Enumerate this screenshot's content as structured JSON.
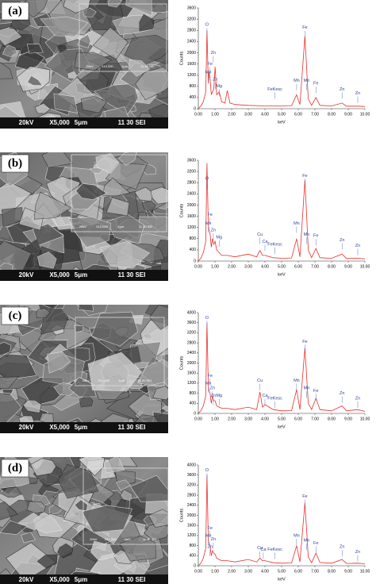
{
  "panels": [
    {
      "label": "(a)",
      "sem_bar": [
        "20kV",
        "X5,000",
        "5μm",
        "11 30 SEI"
      ],
      "inset_bar": [
        "20kV",
        "X10,000",
        "1μm",
        "11 30 SEI"
      ]
    },
    {
      "label": "(b)",
      "sem_bar": [
        "20kV",
        "X5,000",
        "5μm",
        "11 30 SEI"
      ],
      "inset_bar": [
        "20kV",
        "X10,000",
        "1μm",
        "11 30 SEI"
      ]
    },
    {
      "label": "(c)",
      "sem_bar": [
        "20kV",
        "X5,000",
        "5μm",
        "11 30 SEI"
      ],
      "inset_bar": [
        "20kV",
        "X10,000",
        "1μm",
        "11 30 SEI"
      ]
    },
    {
      "label": "(d)",
      "sem_bar": [
        "20kV",
        "X5,000",
        "5μm",
        "11 30 SEI"
      ],
      "inset_bar": [
        "20kV",
        "X10,000",
        "1μm",
        "11 30 SEI"
      ]
    }
  ],
  "chart_data": [
    {
      "type": "line",
      "x_label": "keV",
      "y_label": "Counts",
      "color": "#e8302a",
      "x": [
        0,
        0.15,
        0.3,
        0.45,
        0.52,
        0.6,
        0.65,
        0.7,
        0.78,
        0.85,
        0.93,
        1.01,
        1.1,
        1.25,
        1.4,
        1.6,
        1.74,
        1.9,
        2.2,
        3,
        4,
        5,
        5.6,
        5.9,
        6.1,
        6.4,
        6.6,
        6.8,
        7.06,
        7.3,
        8,
        8.63,
        8.9,
        9.57,
        10
      ],
      "values": [
        0,
        100,
        250,
        600,
        2800,
        900,
        1300,
        1100,
        500,
        600,
        700,
        1500,
        500,
        600,
        250,
        200,
        650,
        200,
        150,
        120,
        100,
        100,
        110,
        500,
        150,
        2600,
        350,
        120,
        400,
        120,
        100,
        200,
        90,
        90,
        80
      ],
      "xlim": [
        0,
        10
      ],
      "ylim": [
        0,
        3600
      ],
      "xticks": [
        {
          "value": 0,
          "label": "0.00"
        },
        {
          "value": 1,
          "label": "1.00"
        },
        {
          "value": 2,
          "label": "2.00"
        },
        {
          "value": 3,
          "label": "3.00"
        },
        {
          "value": 4,
          "label": "4.00"
        },
        {
          "value": 5,
          "label": "5.00"
        },
        {
          "value": 6,
          "label": "6.00"
        },
        {
          "value": 7,
          "label": "7.00"
        },
        {
          "value": 8,
          "label": "8.00"
        },
        {
          "value": 9,
          "label": "9.00"
        },
        {
          "value": 10,
          "label": "10.00"
        }
      ],
      "yticks": [
        0,
        400,
        800,
        1200,
        1600,
        2000,
        2400,
        2800,
        3200,
        3600
      ],
      "annotations": [
        {
          "text": "O",
          "x": 0.52,
          "y": 3000
        },
        {
          "text": "Zn",
          "x": 0.9,
          "y": 2000
        },
        {
          "text": "Fe",
          "x": 0.7,
          "y": 1600
        },
        {
          "text": "Mn",
          "x": 0.6,
          "y": 1300
        },
        {
          "text": "Zn",
          "x": 1.01,
          "y": 1050
        },
        {
          "text": "Mg",
          "x": 1.25,
          "y": 800
        },
        {
          "text": "FeKesc",
          "x": 4.6,
          "y": 700
        },
        {
          "text": "Mn",
          "x": 5.9,
          "y": 1000
        },
        {
          "text": "Fe",
          "x": 6.4,
          "y": 2900
        },
        {
          "text": "Mn",
          "x": 6.5,
          "y": 1000
        },
        {
          "text": "Fe",
          "x": 7.06,
          "y": 900
        },
        {
          "text": "Zn",
          "x": 8.63,
          "y": 700
        },
        {
          "text": "Zn",
          "x": 9.57,
          "y": 550
        }
      ]
    },
    {
      "type": "line",
      "x_label": "keV",
      "y_label": "Counts",
      "color": "#e8302a",
      "x": [
        0,
        0.15,
        0.3,
        0.45,
        0.52,
        0.6,
        0.65,
        0.7,
        0.78,
        0.85,
        0.93,
        1.01,
        1.1,
        1.25,
        1.4,
        1.74,
        2.2,
        3,
        3.5,
        3.7,
        3.85,
        4,
        4.5,
        5,
        5.6,
        5.9,
        6.1,
        6.4,
        6.6,
        6.8,
        7.06,
        7.3,
        8,
        8.63,
        8.9,
        9.57,
        10
      ],
      "values": [
        0,
        100,
        300,
        700,
        3500,
        1300,
        1100,
        1000,
        500,
        800,
        600,
        700,
        400,
        300,
        200,
        200,
        150,
        250,
        150,
        380,
        200,
        200,
        120,
        100,
        110,
        800,
        150,
        2900,
        400,
        120,
        450,
        120,
        100,
        250,
        90,
        100,
        80
      ],
      "xlim": [
        0,
        10
      ],
      "ylim": [
        0,
        3600
      ],
      "xticks": [
        {
          "value": 0,
          "label": "0.00"
        },
        {
          "value": 1,
          "label": "1.00"
        },
        {
          "value": 2,
          "label": "2.00"
        },
        {
          "value": 3,
          "label": "3.00"
        },
        {
          "value": 4,
          "label": "4.00"
        },
        {
          "value": 5,
          "label": "5.00"
        },
        {
          "value": 6,
          "label": "6.00"
        },
        {
          "value": 7,
          "label": "7.00"
        },
        {
          "value": 8,
          "label": "8.00"
        },
        {
          "value": 9,
          "label": "9.00"
        },
        {
          "value": 10,
          "label": "10.00"
        }
      ],
      "yticks": [
        0,
        400,
        800,
        1200,
        1600,
        2000,
        2400,
        2800,
        3200,
        3600
      ],
      "annotations": [
        {
          "text": "O",
          "x": 0.52,
          "y": 2950
        },
        {
          "text": "Fe",
          "x": 0.7,
          "y": 1650
        },
        {
          "text": "Mn",
          "x": 0.6,
          "y": 1350
        },
        {
          "text": "Zn",
          "x": 0.9,
          "y": 1100
        },
        {
          "text": "Mg",
          "x": 1.25,
          "y": 850
        },
        {
          "text": "Cu",
          "x": 3.7,
          "y": 950
        },
        {
          "text": "Ca",
          "x": 4.0,
          "y": 700
        },
        {
          "text": "FeKesc",
          "x": 4.6,
          "y": 600
        },
        {
          "text": "Mn",
          "x": 5.9,
          "y": 1350
        },
        {
          "text": "Fe",
          "x": 6.4,
          "y": 3050
        },
        {
          "text": "Mn",
          "x": 6.5,
          "y": 950
        },
        {
          "text": "Fe",
          "x": 7.06,
          "y": 900
        },
        {
          "text": "Zn",
          "x": 8.63,
          "y": 750
        },
        {
          "text": "Zn",
          "x": 9.57,
          "y": 550
        }
      ]
    },
    {
      "type": "line",
      "x_label": "keV",
      "y_label": "Counts",
      "color": "#e8302a",
      "x": [
        0,
        0.15,
        0.3,
        0.45,
        0.52,
        0.6,
        0.65,
        0.7,
        0.78,
        0.85,
        0.93,
        1.01,
        1.1,
        1.25,
        1.4,
        1.74,
        2.2,
        3,
        3.5,
        3.7,
        3.85,
        4,
        4.5,
        5,
        5.6,
        5.9,
        6.1,
        6.4,
        6.6,
        6.8,
        7.06,
        7.3,
        8,
        8.63,
        8.9,
        9.57,
        10
      ],
      "values": [
        0,
        100,
        300,
        700,
        3600,
        1100,
        900,
        800,
        400,
        700,
        500,
        500,
        300,
        250,
        200,
        200,
        150,
        250,
        150,
        850,
        250,
        350,
        150,
        100,
        110,
        950,
        150,
        2600,
        400,
        150,
        600,
        150,
        100,
        300,
        100,
        150,
        80
      ],
      "xlim": [
        0,
        10
      ],
      "ylim": [
        0,
        4000
      ],
      "xticks": [
        {
          "value": 0,
          "label": "0.00"
        },
        {
          "value": 1,
          "label": "1.00"
        },
        {
          "value": 2,
          "label": "2.00"
        },
        {
          "value": 3,
          "label": "3.00"
        },
        {
          "value": 4,
          "label": "4.00"
        },
        {
          "value": 5,
          "label": "5.00"
        },
        {
          "value": 6,
          "label": "6.00"
        },
        {
          "value": 7,
          "label": "7.00"
        },
        {
          "value": 8,
          "label": "8.00"
        },
        {
          "value": 9,
          "label": "9.00"
        },
        {
          "value": 10,
          "label": "10.00"
        }
      ],
      "yticks": [
        0,
        400,
        800,
        1200,
        1600,
        2000,
        2400,
        2800,
        3200,
        3600,
        4000
      ],
      "annotations": [
        {
          "text": "O",
          "x": 0.52,
          "y": 3800
        },
        {
          "text": "Fe",
          "x": 0.7,
          "y": 1500
        },
        {
          "text": "Mn",
          "x": 0.6,
          "y": 1200
        },
        {
          "text": "Zn",
          "x": 0.85,
          "y": 1000
        },
        {
          "text": "Zn",
          "x": 0.9,
          "y": 700
        },
        {
          "text": "Mg",
          "x": 1.25,
          "y": 700
        },
        {
          "text": "Cu",
          "x": 3.7,
          "y": 1300
        },
        {
          "text": "Ca",
          "x": 4.0,
          "y": 700
        },
        {
          "text": "FeKesc",
          "x": 4.6,
          "y": 600
        },
        {
          "text": "Mn",
          "x": 5.9,
          "y": 1300
        },
        {
          "text": "Fe",
          "x": 6.4,
          "y": 2850
        },
        {
          "text": "Mn",
          "x": 6.5,
          "y": 1000
        },
        {
          "text": "Fe",
          "x": 7.06,
          "y": 900
        },
        {
          "text": "Zn",
          "x": 8.63,
          "y": 800
        },
        {
          "text": "Zn",
          "x": 9.57,
          "y": 600
        }
      ]
    },
    {
      "type": "line",
      "x_label": "keV",
      "y_label": "Counts",
      "color": "#e8302a",
      "x": [
        0,
        0.15,
        0.3,
        0.45,
        0.52,
        0.6,
        0.65,
        0.7,
        0.78,
        0.85,
        0.93,
        1.01,
        1.1,
        1.25,
        1.4,
        1.74,
        2.2,
        3,
        3.5,
        3.7,
        3.85,
        4,
        4.5,
        5,
        5.6,
        5.9,
        6.1,
        6.4,
        6.6,
        6.8,
        7.06,
        7.3,
        8,
        8.63,
        8.9,
        9.57,
        10
      ],
      "values": [
        0,
        100,
        300,
        700,
        3600,
        1000,
        900,
        800,
        400,
        600,
        500,
        450,
        300,
        250,
        200,
        200,
        150,
        250,
        150,
        300,
        200,
        200,
        120,
        100,
        110,
        800,
        150,
        2500,
        350,
        120,
        500,
        130,
        100,
        250,
        90,
        100,
        80
      ],
      "xlim": [
        0,
        10
      ],
      "ylim": [
        0,
        4000
      ],
      "xticks": [
        {
          "value": 0,
          "label": "0.00"
        },
        {
          "value": 1,
          "label": "1.00"
        },
        {
          "value": 2,
          "label": "2.00"
        },
        {
          "value": 3,
          "label": "3.00"
        },
        {
          "value": 4,
          "label": "4.00"
        },
        {
          "value": 5,
          "label": "5.00"
        },
        {
          "value": 6,
          "label": "6.00"
        },
        {
          "value": 7,
          "label": "7.00"
        },
        {
          "value": 8,
          "label": "8.00"
        },
        {
          "value": 9,
          "label": "9.00"
        },
        {
          "value": 10,
          "label": "10.00"
        }
      ],
      "yticks": [
        0,
        400,
        800,
        1200,
        1600,
        2000,
        2400,
        2800,
        3200,
        3600,
        4000
      ],
      "annotations": [
        {
          "text": "O",
          "x": 0.52,
          "y": 3800
        },
        {
          "text": "Fe",
          "x": 0.7,
          "y": 1500
        },
        {
          "text": "Mn",
          "x": 0.6,
          "y": 1200
        },
        {
          "text": "Zn",
          "x": 0.9,
          "y": 1050
        },
        {
          "text": "Zn",
          "x": 0.7,
          "y": 750
        },
        {
          "text": "Cu",
          "x": 3.7,
          "y": 700
        },
        {
          "text": "Ca",
          "x": 3.9,
          "y": 650
        },
        {
          "text": "FeKesc",
          "x": 4.6,
          "y": 650
        },
        {
          "text": "Mn",
          "x": 5.9,
          "y": 1200
        },
        {
          "text": "Fe",
          "x": 6.4,
          "y": 2750
        },
        {
          "text": "Mn",
          "x": 6.5,
          "y": 1000
        },
        {
          "text": "Fe",
          "x": 7.06,
          "y": 900
        },
        {
          "text": "Zn",
          "x": 8.63,
          "y": 750
        },
        {
          "text": "Zn",
          "x": 9.57,
          "y": 550
        }
      ]
    }
  ]
}
